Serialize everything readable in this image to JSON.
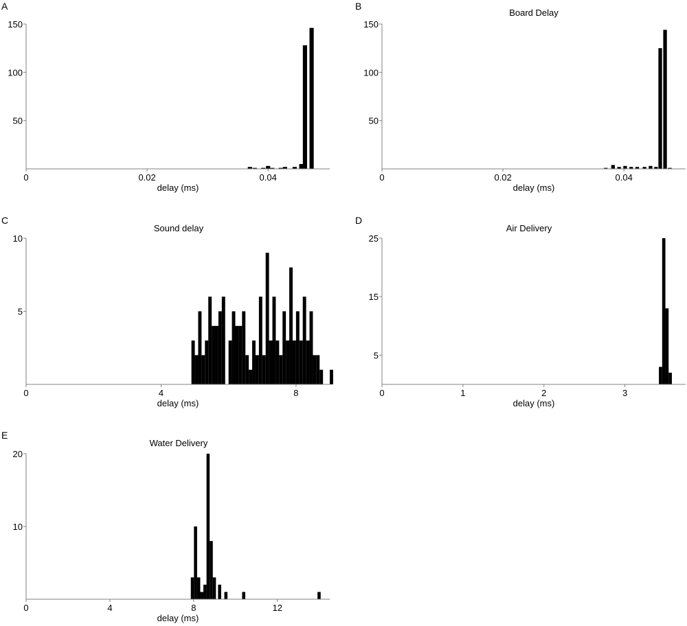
{
  "chart_data": [
    {
      "panel": "A",
      "type": "bar",
      "title": "",
      "xlabel": "delay (ms)",
      "ylabel": "",
      "xlim": [
        0,
        0.0502
      ],
      "ylim": [
        0,
        150
      ],
      "xticks": [
        0,
        0.02,
        0.04
      ],
      "xtick_labels": [
        "0",
        "0.02",
        "0.04"
      ],
      "yticks": [
        50,
        100,
        150
      ],
      "ytick_labels": [
        "50",
        "100",
        "150"
      ],
      "bin_width": 0.0007,
      "bars": [
        {
          "x": 0.037,
          "y": 2
        },
        {
          "x": 0.0378,
          "y": 1
        },
        {
          "x": 0.0392,
          "y": 1
        },
        {
          "x": 0.04,
          "y": 3
        },
        {
          "x": 0.0407,
          "y": 1
        },
        {
          "x": 0.0421,
          "y": 1
        },
        {
          "x": 0.0428,
          "y": 2
        },
        {
          "x": 0.0444,
          "y": 2
        },
        {
          "x": 0.0455,
          "y": 5
        },
        {
          "x": 0.0461,
          "y": 128
        },
        {
          "x": 0.0472,
          "y": 146
        }
      ]
    },
    {
      "panel": "B",
      "type": "bar",
      "title": "Board Delay",
      "xlabel": "delay (ms)",
      "ylabel": "",
      "xlim": [
        0,
        0.0502
      ],
      "ylim": [
        0,
        150
      ],
      "xticks": [
        0,
        0.02,
        0.04
      ],
      "xtick_labels": [
        "0",
        "0.02",
        "0.04"
      ],
      "yticks": [
        50,
        100,
        150
      ],
      "ytick_labels": [
        "50",
        "100",
        "150"
      ],
      "bin_width": 0.0006,
      "bars": [
        {
          "x": 0.037,
          "y": 1
        },
        {
          "x": 0.0382,
          "y": 4
        },
        {
          "x": 0.0392,
          "y": 2
        },
        {
          "x": 0.0402,
          "y": 3
        },
        {
          "x": 0.0412,
          "y": 2
        },
        {
          "x": 0.0422,
          "y": 2
        },
        {
          "x": 0.0434,
          "y": 2
        },
        {
          "x": 0.0444,
          "y": 3
        },
        {
          "x": 0.0453,
          "y": 2
        },
        {
          "x": 0.046,
          "y": 125
        },
        {
          "x": 0.0468,
          "y": 144
        },
        {
          "x": 0.0476,
          "y": 1
        }
      ]
    },
    {
      "panel": "C",
      "type": "bar",
      "title": "Sound delay",
      "xlabel": "delay (ms)",
      "ylabel": "",
      "xlim": [
        0,
        9.0
      ],
      "ylim": [
        0,
        10
      ],
      "xticks": [
        0,
        4,
        8
      ],
      "xtick_labels": [
        "0",
        "4",
        "8"
      ],
      "yticks": [
        5,
        10
      ],
      "ytick_labels": [
        "5",
        "10"
      ],
      "bin_width": 0.1,
      "bars": [
        {
          "x": 4.95,
          "y": 3
        },
        {
          "x": 5.05,
          "y": 2
        },
        {
          "x": 5.15,
          "y": 5
        },
        {
          "x": 5.25,
          "y": 2
        },
        {
          "x": 5.35,
          "y": 3
        },
        {
          "x": 5.45,
          "y": 6
        },
        {
          "x": 5.55,
          "y": 4
        },
        {
          "x": 5.65,
          "y": 4
        },
        {
          "x": 5.75,
          "y": 5
        },
        {
          "x": 5.85,
          "y": 6
        },
        {
          "x": 6.05,
          "y": 3
        },
        {
          "x": 6.15,
          "y": 5
        },
        {
          "x": 6.25,
          "y": 4
        },
        {
          "x": 6.35,
          "y": 4
        },
        {
          "x": 6.45,
          "y": 5
        },
        {
          "x": 6.55,
          "y": 2
        },
        {
          "x": 6.65,
          "y": 1
        },
        {
          "x": 6.75,
          "y": 3
        },
        {
          "x": 6.85,
          "y": 2
        },
        {
          "x": 6.95,
          "y": 6
        },
        {
          "x": 7.05,
          "y": 2
        },
        {
          "x": 7.15,
          "y": 9
        },
        {
          "x": 7.25,
          "y": 3
        },
        {
          "x": 7.35,
          "y": 6
        },
        {
          "x": 7.45,
          "y": 3
        },
        {
          "x": 7.55,
          "y": 2
        },
        {
          "x": 7.65,
          "y": 5
        },
        {
          "x": 7.75,
          "y": 3
        },
        {
          "x": 7.85,
          "y": 8
        },
        {
          "x": 7.95,
          "y": 3
        },
        {
          "x": 8.05,
          "y": 5
        },
        {
          "x": 8.15,
          "y": 3
        },
        {
          "x": 8.25,
          "y": 6
        },
        {
          "x": 8.35,
          "y": 3
        },
        {
          "x": 8.45,
          "y": 5
        },
        {
          "x": 8.55,
          "y": 2
        },
        {
          "x": 8.65,
          "y": 2
        },
        {
          "x": 8.75,
          "y": 1
        },
        {
          "x": 9.05,
          "y": 1
        }
      ]
    },
    {
      "panel": "D",
      "type": "bar",
      "title": "Air Delivery",
      "xlabel": "delay (ms)",
      "ylabel": "",
      "xlim": [
        0,
        3.75
      ],
      "ylim": [
        0,
        25
      ],
      "xticks": [
        0,
        1,
        2,
        3
      ],
      "xtick_labels": [
        "0",
        "1",
        "2",
        "3"
      ],
      "yticks": [
        5,
        15,
        25
      ],
      "ytick_labels": [
        "5",
        "15",
        "25"
      ],
      "bin_width": 0.04,
      "bars": [
        {
          "x": 3.44,
          "y": 3
        },
        {
          "x": 3.48,
          "y": 25
        },
        {
          "x": 3.52,
          "y": 13
        },
        {
          "x": 3.56,
          "y": 2
        }
      ]
    },
    {
      "panel": "E",
      "type": "bar",
      "title": "Water Delivery",
      "xlabel": "delay (ms)",
      "ylabel": "",
      "xlim": [
        0,
        14.5
      ],
      "ylim": [
        0,
        20
      ],
      "xticks": [
        0,
        4,
        8,
        12
      ],
      "xtick_labels": [
        "0",
        "4",
        "8",
        "12"
      ],
      "yticks": [
        10,
        20
      ],
      "ytick_labels": [
        "10",
        "20"
      ],
      "bin_width": 0.15,
      "bars": [
        {
          "x": 7.94,
          "y": 3
        },
        {
          "x": 8.09,
          "y": 10
        },
        {
          "x": 8.24,
          "y": 3
        },
        {
          "x": 8.39,
          "y": 1
        },
        {
          "x": 8.54,
          "y": 2
        },
        {
          "x": 8.69,
          "y": 20
        },
        {
          "x": 8.84,
          "y": 8
        },
        {
          "x": 8.99,
          "y": 3
        },
        {
          "x": 9.24,
          "y": 2
        },
        {
          "x": 9.54,
          "y": 1
        },
        {
          "x": 10.39,
          "y": 1
        },
        {
          "x": 13.99,
          "y": 1
        }
      ]
    }
  ]
}
